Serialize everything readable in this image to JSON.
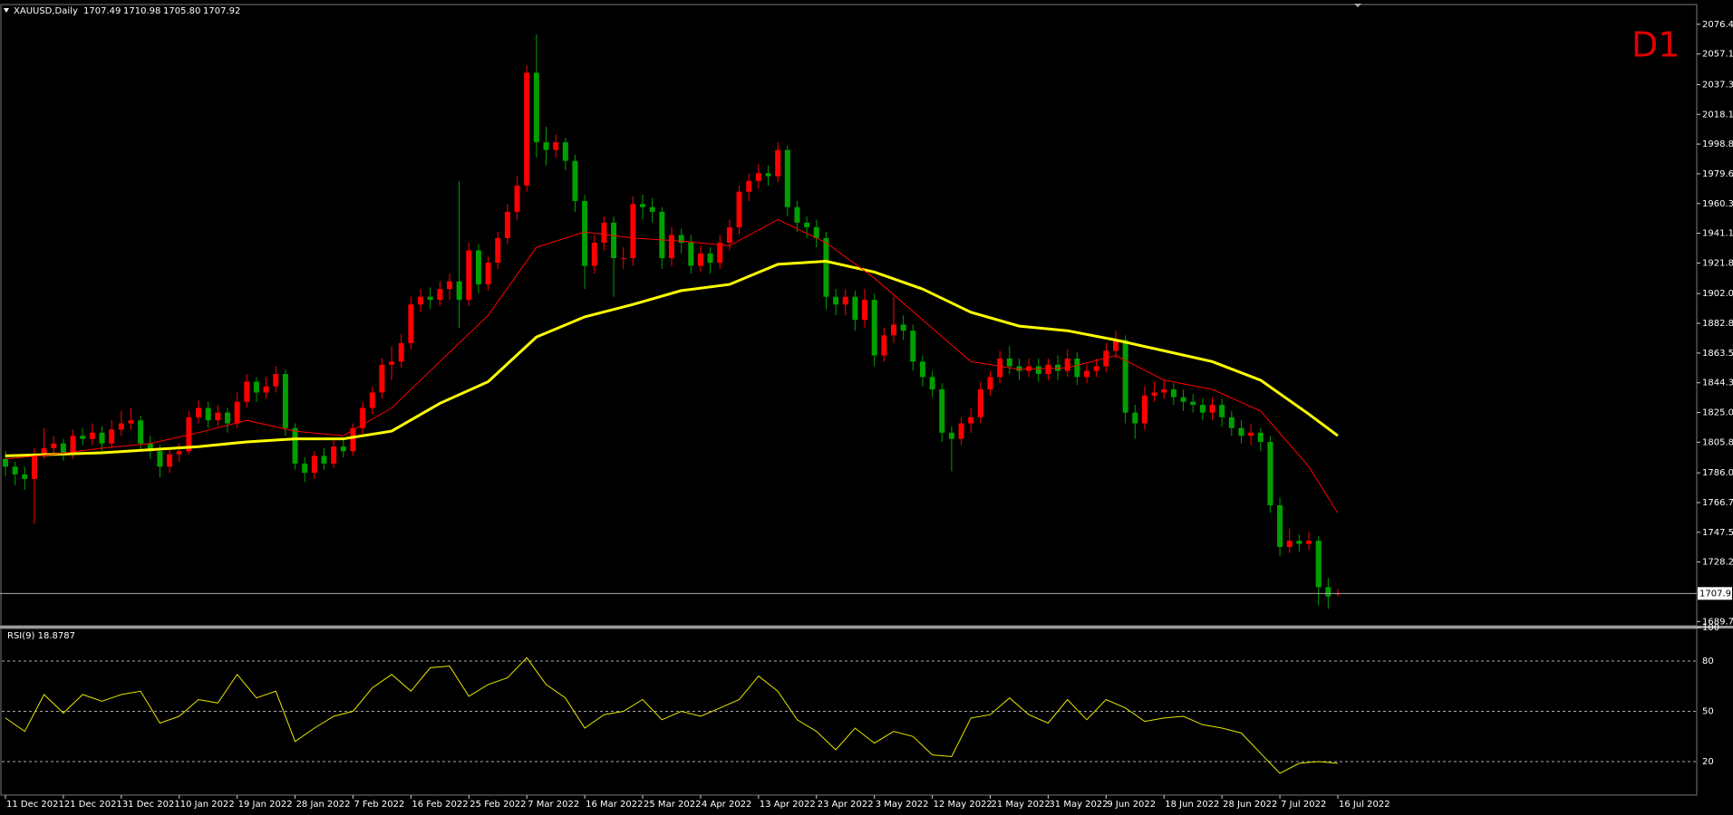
{
  "chart_data": [
    {
      "type": "candlestick",
      "title": "XAUUSD,Daily",
      "header_values": [
        "1707.49",
        "1710.98",
        "1705.80",
        "1707.92"
      ],
      "timeframe": "D1",
      "up_color": "#ff0000",
      "down_color": "#00a000",
      "open": [
        1795,
        1790,
        1785,
        1782,
        1798,
        1802,
        1805,
        1798,
        1810,
        1808,
        1812,
        1805,
        1814,
        1818,
        1820,
        1805,
        1800,
        1790,
        1798,
        1800,
        1822,
        1828,
        1820,
        1825,
        1818,
        1832,
        1845,
        1838,
        1842,
        1850,
        1815,
        1792,
        1786,
        1797,
        1792,
        1803,
        1800,
        1815,
        1828,
        1838,
        1856,
        1858,
        1870,
        1895,
        1900,
        1898,
        1905,
        1910,
        1898,
        1930,
        1908,
        1922,
        1938,
        1955,
        1972,
        2045,
        2000,
        1995,
        2000,
        1988,
        1962,
        1920,
        1935,
        1948,
        1925,
        1925,
        1960,
        1958,
        1955,
        1925,
        1940,
        1935,
        1920,
        1928,
        1922,
        1935,
        1945,
        1968,
        1975,
        1980,
        1978,
        1995,
        1958,
        1948,
        1945,
        1938,
        1900,
        1895,
        1900,
        1885,
        1898,
        1862,
        1875,
        1882,
        1878,
        1858,
        1848,
        1840,
        1812,
        1808,
        1818,
        1822,
        1840,
        1848,
        1860,
        1855,
        1852,
        1855,
        1850,
        1856,
        1852,
        1860,
        1848,
        1852,
        1855,
        1865,
        1872,
        1825,
        1818,
        1836,
        1838,
        1840,
        1835,
        1832,
        1830,
        1825,
        1830,
        1822,
        1815,
        1810,
        1812,
        1806,
        1765,
        1738,
        1742,
        1740,
        1742,
        1712,
        1707.49
      ],
      "high": [
        1800,
        1793,
        1790,
        1802,
        1815,
        1810,
        1808,
        1814,
        1815,
        1818,
        1816,
        1820,
        1826,
        1828,
        1823,
        1810,
        1804,
        1802,
        1805,
        1826,
        1833,
        1832,
        1830,
        1828,
        1838,
        1850,
        1848,
        1848,
        1855,
        1853,
        1818,
        1796,
        1800,
        1802,
        1807,
        1808,
        1818,
        1832,
        1842,
        1860,
        1868,
        1876,
        1900,
        1905,
        1906,
        1910,
        1915,
        1975,
        1935,
        1934,
        1926,
        1942,
        1960,
        1978,
        2050,
        2070,
        2010,
        2005,
        2003,
        1992,
        1966,
        1940,
        1952,
        1952,
        1932,
        1965,
        1966,
        1964,
        1958,
        1945,
        1944,
        1940,
        1933,
        1932,
        1940,
        1950,
        1972,
        1980,
        1986,
        1985,
        2000,
        1998,
        1962,
        1952,
        1950,
        1942,
        1905,
        1905,
        1904,
        1905,
        1902,
        1880,
        1900,
        1888,
        1882,
        1862,
        1852,
        1844,
        1816,
        1822,
        1828,
        1845,
        1852,
        1865,
        1868,
        1860,
        1860,
        1860,
        1860,
        1862,
        1866,
        1864,
        1856,
        1860,
        1870,
        1878,
        1875,
        1830,
        1842,
        1845,
        1846,
        1844,
        1840,
        1837,
        1834,
        1835,
        1834,
        1826,
        1820,
        1818,
        1815,
        1810,
        1770,
        1750,
        1746,
        1748,
        1745,
        1718,
        1710.98
      ],
      "low": [
        1784,
        1778,
        1775,
        1753,
        1795,
        1798,
        1794,
        1795,
        1804,
        1804,
        1800,
        1802,
        1810,
        1814,
        1800,
        1795,
        1783,
        1786,
        1793,
        1798,
        1818,
        1815,
        1816,
        1812,
        1815,
        1828,
        1832,
        1834,
        1838,
        1810,
        1788,
        1780,
        1782,
        1788,
        1789,
        1796,
        1797,
        1811,
        1824,
        1834,
        1846,
        1854,
        1866,
        1890,
        1892,
        1894,
        1898,
        1880,
        1894,
        1902,
        1904,
        1918,
        1934,
        1950,
        1968,
        1990,
        1985,
        1990,
        1982,
        1955,
        1905,
        1915,
        1930,
        1900,
        1918,
        1920,
        1950,
        1948,
        1918,
        1920,
        1928,
        1915,
        1916,
        1915,
        1918,
        1930,
        1940,
        1962,
        1970,
        1972,
        1974,
        1952,
        1942,
        1938,
        1932,
        1892,
        1888,
        1888,
        1878,
        1880,
        1855,
        1858,
        1870,
        1872,
        1852,
        1842,
        1835,
        1806,
        1787,
        1804,
        1812,
        1818,
        1836,
        1844,
        1850,
        1846,
        1848,
        1845,
        1846,
        1846,
        1848,
        1843,
        1844,
        1848,
        1851,
        1860,
        1818,
        1808,
        1814,
        1832,
        1834,
        1830,
        1826,
        1825,
        1820,
        1820,
        1816,
        1810,
        1805,
        1804,
        1800,
        1760,
        1732,
        1734,
        1735,
        1736,
        1700,
        1698,
        1705.8
      ],
      "close": [
        1790,
        1785,
        1782,
        1798,
        1802,
        1805,
        1798,
        1810,
        1808,
        1812,
        1805,
        1814,
        1818,
        1820,
        1805,
        1800,
        1790,
        1798,
        1800,
        1822,
        1828,
        1820,
        1825,
        1818,
        1832,
        1845,
        1838,
        1842,
        1850,
        1815,
        1792,
        1786,
        1797,
        1792,
        1803,
        1800,
        1815,
        1828,
        1838,
        1856,
        1858,
        1870,
        1895,
        1900,
        1898,
        1905,
        1910,
        1898,
        1930,
        1908,
        1922,
        1938,
        1955,
        1972,
        2045,
        2000,
        1995,
        2000,
        1988,
        1962,
        1920,
        1935,
        1948,
        1925,
        1925,
        1960,
        1958,
        1955,
        1925,
        1940,
        1935,
        1920,
        1928,
        1922,
        1935,
        1945,
        1968,
        1975,
        1980,
        1978,
        1995,
        1958,
        1948,
        1945,
        1938,
        1900,
        1895,
        1900,
        1885,
        1898,
        1862,
        1875,
        1882,
        1878,
        1858,
        1848,
        1840,
        1812,
        1808,
        1818,
        1822,
        1840,
        1848,
        1860,
        1855,
        1852,
        1855,
        1850,
        1856,
        1852,
        1860,
        1848,
        1852,
        1855,
        1865,
        1872,
        1825,
        1818,
        1836,
        1838,
        1840,
        1835,
        1832,
        1830,
        1825,
        1830,
        1822,
        1815,
        1810,
        1812,
        1806,
        1765,
        1738,
        1742,
        1740,
        1742,
        1712,
        1706,
        1707.92
      ],
      "overlays": [
        {
          "color": "#ffff00",
          "style": "thick",
          "x": [
            0,
            5,
            10,
            15,
            20,
            25,
            30,
            35,
            40,
            45,
            50,
            55,
            60,
            65,
            70,
            75,
            80,
            85,
            90,
            95,
            100,
            105,
            110,
            115,
            120,
            125,
            130,
            135,
            138
          ],
          "values": [
            1797,
            1798,
            1799,
            1801,
            1803,
            1806,
            1808,
            1808,
            1813,
            1831,
            1845,
            1874,
            1887,
            1895,
            1904,
            1908,
            1921,
            1923,
            1916,
            1905,
            1890,
            1881,
            1878,
            1872,
            1865,
            1858,
            1846,
            1824,
            1810
          ]
        },
        {
          "color": "#ff0000",
          "style": "thin",
          "x": [
            0,
            5,
            10,
            15,
            20,
            25,
            30,
            35,
            40,
            45,
            50,
            55,
            60,
            65,
            70,
            75,
            80,
            85,
            90,
            95,
            100,
            105,
            110,
            115,
            120,
            125,
            130,
            135,
            138
          ],
          "values": [
            1795,
            1798,
            1802,
            1805,
            1812,
            1820,
            1813,
            1810,
            1828,
            1858,
            1888,
            1932,
            1942,
            1938,
            1936,
            1933,
            1950,
            1935,
            1912,
            1885,
            1858,
            1853,
            1854,
            1862,
            1846,
            1840,
            1826,
            1790,
            1760
          ]
        }
      ],
      "last_price": 1707.92,
      "ylim": [
        1687.6,
        2088.6
      ],
      "yticks": [
        {
          "value": 2076.4,
          "label": "2076.40"
        },
        {
          "value": 2057.15,
          "label": "2057.15"
        },
        {
          "value": 2037.35,
          "label": "2037.35"
        },
        {
          "value": 2018.1,
          "label": "2018.10"
        },
        {
          "value": 1998.85,
          "label": "1998.85"
        },
        {
          "value": 1979.6,
          "label": "1979.60"
        },
        {
          "value": 1960.35,
          "label": "1960.35"
        },
        {
          "value": 1941.1,
          "label": "1941.10"
        },
        {
          "value": 1921.85,
          "label": "1921.85"
        },
        {
          "value": 1902.05,
          "label": "1902.05"
        },
        {
          "value": 1882.8,
          "label": "1882.80"
        },
        {
          "value": 1863.55,
          "label": "1863.55"
        },
        {
          "value": 1844.3,
          "label": "1844.30"
        },
        {
          "value": 1825.05,
          "label": "1825.05"
        },
        {
          "value": 1805.8,
          "label": "1805.80"
        },
        {
          "value": 1786,
          "label": "1786.00"
        },
        {
          "value": 1766.75,
          "label": "1766.75"
        },
        {
          "value": 1747.5,
          "label": "1747.50"
        },
        {
          "value": 1728.25,
          "label": "1728.25"
        },
        {
          "value": 1689.75,
          "label": "1689.75"
        }
      ],
      "xticks": [
        {
          "value": 0,
          "label": "11 Dec 2021"
        },
        {
          "value": 6,
          "label": "21 Dec 2021"
        },
        {
          "value": 12,
          "label": "31 Dec 2021"
        },
        {
          "value": 18,
          "label": "10 Jan 2022"
        },
        {
          "value": 24,
          "label": "19 Jan 2022"
        },
        {
          "value": 30,
          "label": "28 Jan 2022"
        },
        {
          "value": 36,
          "label": "7 Feb 2022"
        },
        {
          "value": 42,
          "label": "16 Feb 2022"
        },
        {
          "value": 48,
          "label": "25 Feb 2022"
        },
        {
          "value": 54,
          "label": "7 Mar 2022"
        },
        {
          "value": 60,
          "label": "16 Mar 2022"
        },
        {
          "value": 66,
          "label": "25 Mar 2022"
        },
        {
          "value": 72,
          "label": "4 Apr 2022"
        },
        {
          "value": 78,
          "label": "13 Apr 2022"
        },
        {
          "value": 84,
          "label": "23 Apr 2022"
        },
        {
          "value": 90,
          "label": "3 May 2022"
        },
        {
          "value": 96,
          "label": "12 May 2022"
        },
        {
          "value": 102,
          "label": "21 May 2022"
        },
        {
          "value": 108,
          "label": "31 May 2022"
        },
        {
          "value": 114,
          "label": "9 Jun 2022"
        },
        {
          "value": 120,
          "label": "18 Jun 2022"
        },
        {
          "value": 126,
          "label": "28 Jun 2022"
        },
        {
          "value": 132,
          "label": "7 Jul 2022"
        },
        {
          "value": 138,
          "label": "16 Jul 2022"
        }
      ]
    },
    {
      "type": "line",
      "title": "RSI(9) 18.8787",
      "color": "#e6e600",
      "x": [
        0,
        2,
        4,
        6,
        8,
        10,
        12,
        14,
        16,
        18,
        20,
        22,
        24,
        26,
        28,
        30,
        32,
        34,
        36,
        38,
        40,
        42,
        44,
        46,
        48,
        50,
        52,
        54,
        56,
        58,
        60,
        62,
        64,
        66,
        68,
        70,
        72,
        74,
        76,
        78,
        80,
        82,
        84,
        86,
        88,
        90,
        92,
        94,
        96,
        98,
        100,
        102,
        104,
        106,
        108,
        110,
        112,
        114,
        116,
        118,
        120,
        122,
        124,
        126,
        128,
        130,
        132,
        134,
        136,
        138
      ],
      "values": [
        46,
        38,
        60,
        49,
        60,
        56,
        60,
        62,
        43,
        47,
        57,
        55,
        72,
        58,
        62,
        32,
        40,
        47,
        50,
        64,
        72,
        62,
        76,
        77,
        59,
        66,
        70,
        82,
        66,
        58,
        40,
        48,
        50,
        57,
        45,
        50,
        47,
        52,
        57,
        71,
        62,
        45,
        38,
        27,
        40,
        31,
        38,
        35,
        24,
        23,
        46,
        48,
        58,
        48,
        43,
        57,
        45,
        57,
        52,
        44,
        46,
        47,
        42,
        40,
        37,
        25,
        13,
        19,
        20,
        19
      ],
      "ylim": [
        0,
        100
      ],
      "yticks": [
        100,
        80,
        50,
        20
      ]
    }
  ]
}
